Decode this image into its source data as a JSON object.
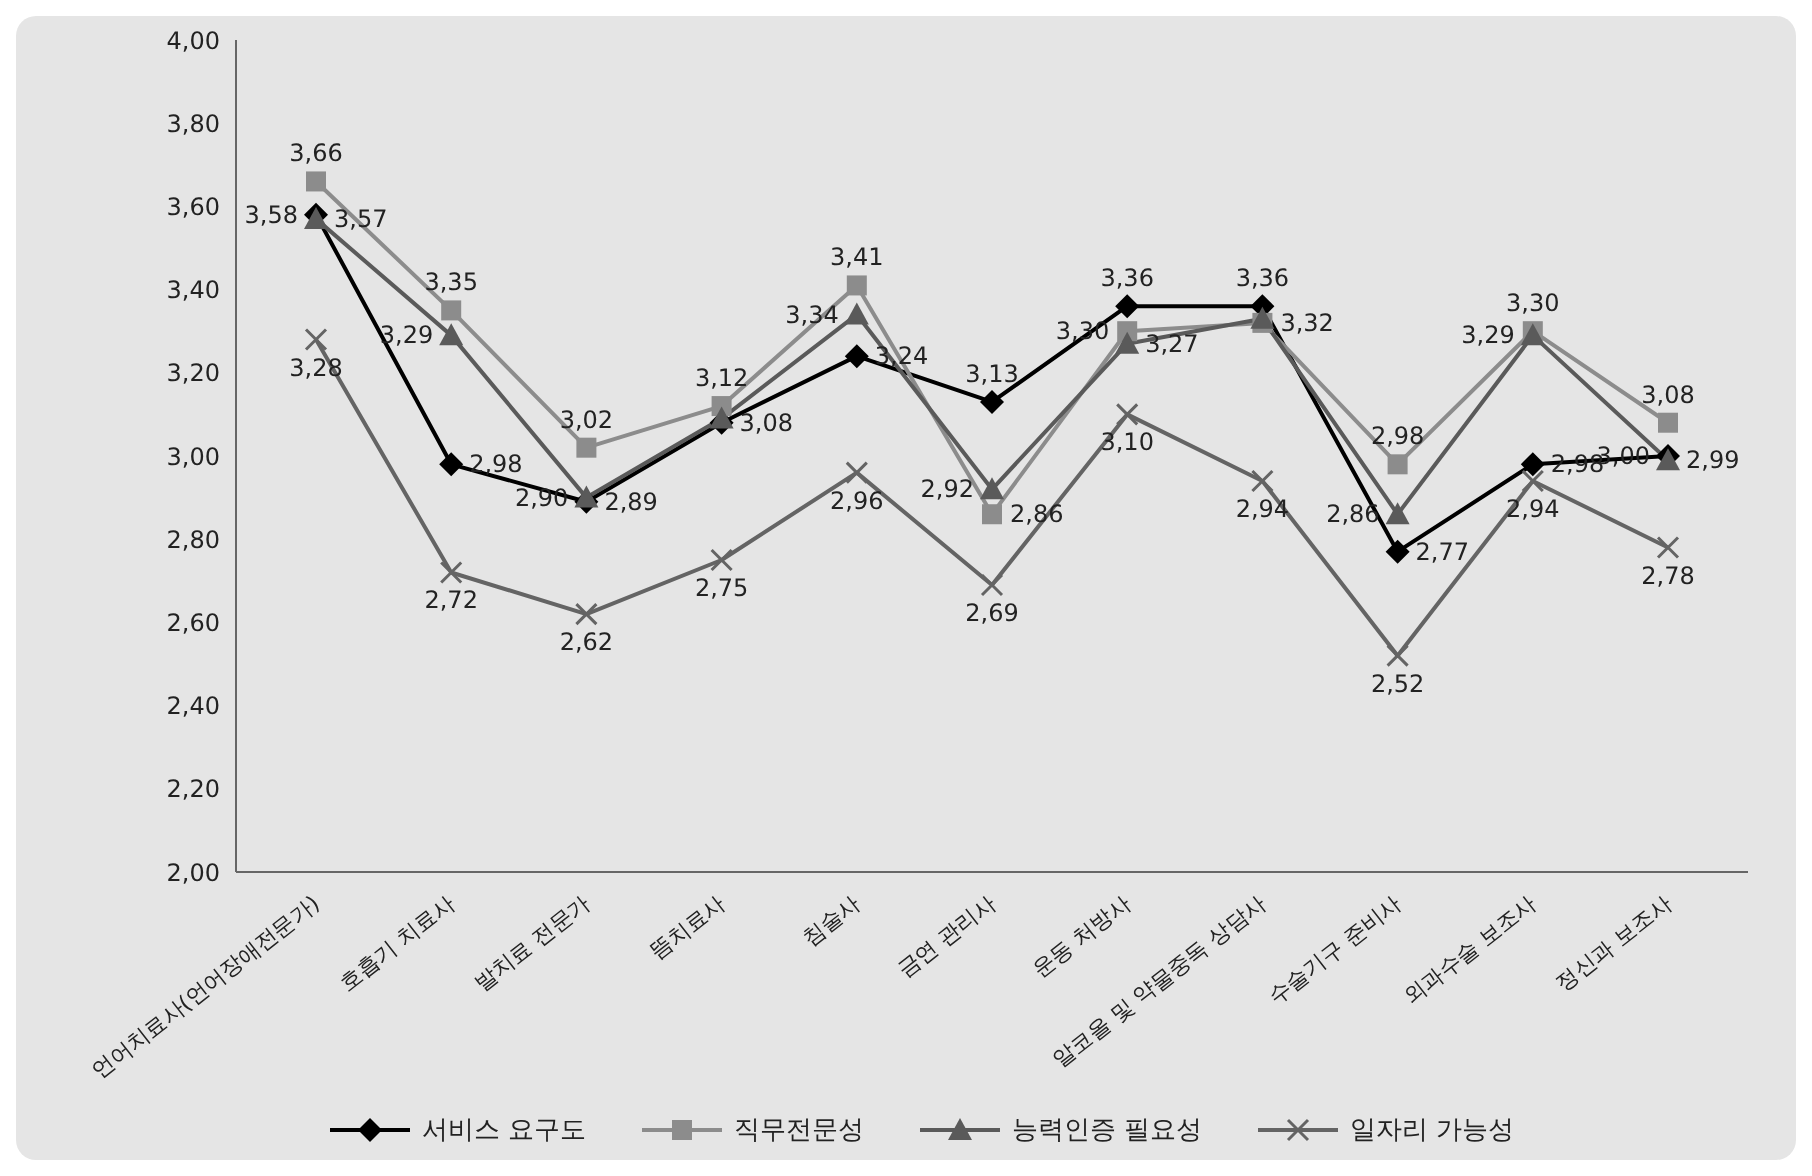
{
  "chart_data": {
    "type": "line",
    "categories": [
      "언어치료사(언어장애전문가)",
      "호흡기 치료사",
      "발치료 전문가",
      "뜸치료사",
      "침술사",
      "금연 관리사",
      "운동 처방사",
      "알코올 및 약물중독 상담사",
      "수술기구 준비사",
      "외과수술 보조사",
      "정신과 보조사"
    ],
    "series": [
      {
        "name": "서비스 요구도",
        "color": "#000000",
        "marker": "diamond",
        "values": [
          3.58,
          2.98,
          2.89,
          3.08,
          3.24,
          3.13,
          3.36,
          3.36,
          2.77,
          2.98,
          3.0
        ],
        "value_labels": [
          "3,58",
          "2,98",
          "2,89",
          "3,08",
          "3,24",
          "3,13",
          "3,36",
          "3,36",
          "2,77",
          "2,98",
          "3,00"
        ]
      },
      {
        "name": "직무전문성",
        "color": "#8c8c8c",
        "marker": "square",
        "values": [
          3.66,
          3.35,
          3.02,
          3.12,
          3.41,
          2.86,
          3.3,
          3.32,
          2.98,
          3.3,
          3.08
        ],
        "value_labels": [
          "3,66",
          "3,35",
          "3,02",
          "3,12",
          "3,41",
          "2,86",
          "3,30",
          "3,32",
          "2,98",
          "3,30",
          "3,08"
        ]
      },
      {
        "name": "능력인증 필요성",
        "color": "#5a5a5a",
        "marker": "triangle",
        "values": [
          3.57,
          3.29,
          2.9,
          3.09,
          3.34,
          2.92,
          3.27,
          3.33,
          2.86,
          3.29,
          2.99
        ],
        "value_labels": [
          "3,57",
          "3,29",
          "2,90",
          null,
          "3,34",
          "2,92",
          "3,27",
          null,
          "2,86",
          "3,29",
          "2,99"
        ]
      },
      {
        "name": "일자리 가능성",
        "color": "#646464",
        "marker": "cross",
        "values": [
          3.28,
          2.72,
          2.62,
          2.75,
          2.96,
          2.69,
          3.1,
          2.94,
          2.52,
          2.94,
          2.78
        ],
        "value_labels": [
          "3,28",
          "2,72",
          "2,62",
          "2,75",
          "2,96",
          "2,69",
          "3,10",
          "2,94",
          "2,52",
          "2,94",
          "2,78"
        ]
      }
    ],
    "ylim": [
      2,
      4
    ],
    "yticks": [
      {
        "value": 2,
        "label": "2,00"
      },
      {
        "value": 2.2,
        "label": "2,20"
      },
      {
        "value": 2.4,
        "label": "2,40"
      },
      {
        "value": 2.6,
        "label": "2,60"
      },
      {
        "value": 2.8,
        "label": "2,80"
      },
      {
        "value": 3,
        "label": "3,00"
      },
      {
        "value": 3.2,
        "label": "3,20"
      },
      {
        "value": 3.4,
        "label": "3,40"
      },
      {
        "value": 3.6,
        "label": "3,60"
      },
      {
        "value": 3.8,
        "label": "3,80"
      },
      {
        "value": 4,
        "label": "4,00"
      }
    ],
    "grid": false,
    "legend": "bottom"
  }
}
